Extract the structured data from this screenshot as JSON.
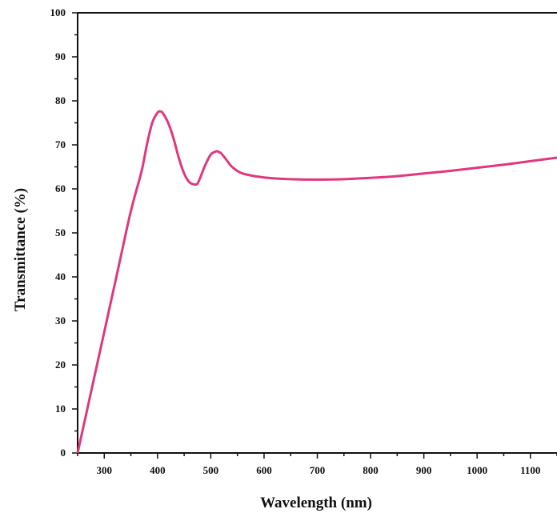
{
  "chart_data": {
    "type": "line",
    "title": "",
    "xlabel": "Wavelength (nm)",
    "ylabel": "Transmittance (%)",
    "xlim": [
      250,
      1150
    ],
    "ylim": [
      0,
      100
    ],
    "xticks": [
      300,
      400,
      500,
      600,
      700,
      800,
      900,
      1000,
      1100
    ],
    "yticks": [
      0,
      10,
      20,
      30,
      40,
      50,
      60,
      70,
      80,
      90,
      100
    ],
    "grid": false,
    "line_color": "#e0387d",
    "series": [
      {
        "x": [
          250,
          270,
          290,
          310,
          330,
          350,
          370,
          380,
          390,
          400,
          405,
          410,
          420,
          430,
          440,
          450,
          460,
          470,
          475,
          480,
          490,
          500,
          510,
          515,
          520,
          530,
          540,
          560,
          600,
          650,
          700,
          750,
          800,
          850,
          900,
          950,
          1000,
          1050,
          1100,
          1150
        ],
        "y": [
          0,
          11,
          22,
          33,
          44,
          55,
          64,
          70,
          75,
          77.3,
          77.6,
          77.2,
          75,
          71.5,
          67,
          63.5,
          61.5,
          61,
          61.2,
          62.5,
          65.5,
          67.8,
          68.5,
          68.4,
          68,
          66.5,
          65,
          63.5,
          62.6,
          62.2,
          62.1,
          62.2,
          62.5,
          62.9,
          63.5,
          64.1,
          64.8,
          65.5,
          66.3,
          67.1
        ]
      }
    ]
  }
}
